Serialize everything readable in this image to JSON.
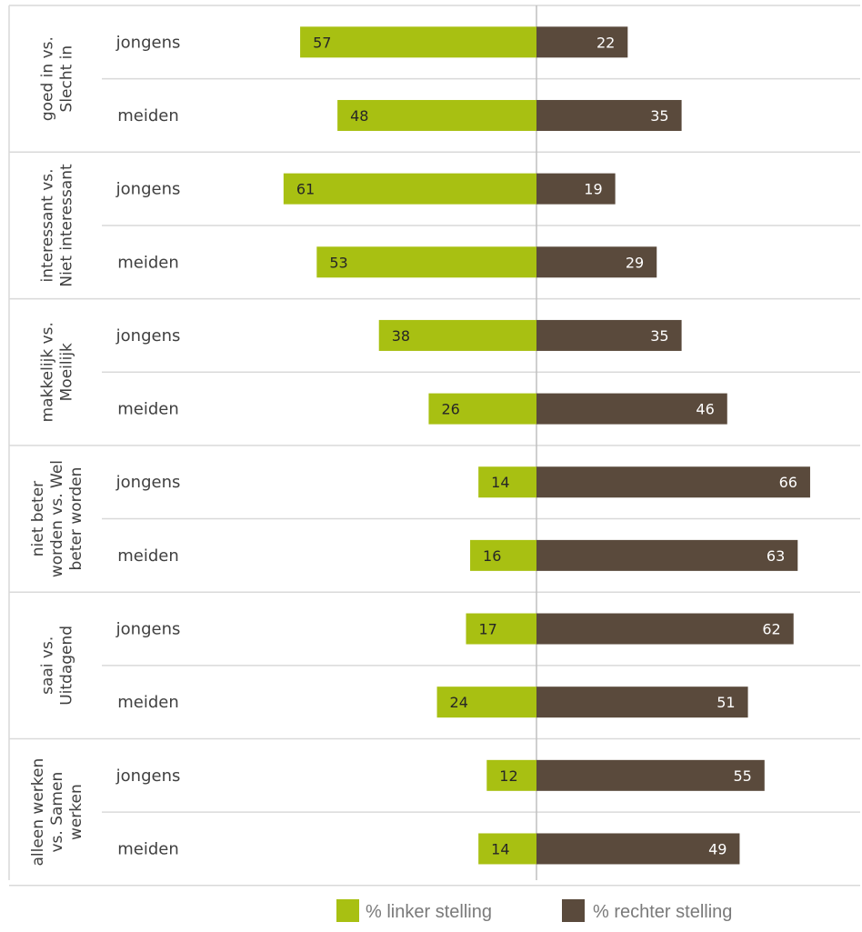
{
  "chart_data": {
    "type": "bar",
    "orientation": "horizontal-diverging",
    "xlim": [
      -65,
      70
    ],
    "grid": "horizontal separators between rows",
    "legend_position": "bottom",
    "colors": {
      "left": "#a8c012",
      "right": "#5a4a3c",
      "grid": "#d9d9d9",
      "axis": "#bfbfbf"
    },
    "groups": [
      {
        "label_lines": [
          "goed in vs.",
          "Slecht in"
        ],
        "rows": [
          {
            "label": "jongens",
            "left": 57,
            "right": 22
          },
          {
            "label": "meiden",
            "left": 48,
            "right": 35
          }
        ]
      },
      {
        "label_lines": [
          "interessant vs.",
          "Niet interessant"
        ],
        "rows": [
          {
            "label": "jongens",
            "left": 61,
            "right": 19
          },
          {
            "label": "meiden",
            "left": 53,
            "right": 29
          }
        ]
      },
      {
        "label_lines": [
          "makkelijk vs.",
          "Moeilijk"
        ],
        "rows": [
          {
            "label": "jongens",
            "left": 38,
            "right": 35
          },
          {
            "label": "meiden",
            "left": 26,
            "right": 46
          }
        ]
      },
      {
        "label_lines": [
          "niet beter",
          "worden vs. Wel",
          "beter worden"
        ],
        "rows": [
          {
            "label": "jongens",
            "left": 14,
            "right": 66
          },
          {
            "label": "meiden",
            "left": 16,
            "right": 63
          }
        ]
      },
      {
        "label_lines": [
          "saai vs.",
          "Uitdagend"
        ],
        "rows": [
          {
            "label": "jongens",
            "left": 17,
            "right": 62
          },
          {
            "label": "meiden",
            "left": 24,
            "right": 51
          }
        ]
      },
      {
        "label_lines": [
          "alleen werken",
          "vs. Samen",
          "werken"
        ],
        "rows": [
          {
            "label": "jongens",
            "left": 12,
            "right": 55
          },
          {
            "label": "meiden",
            "left": 14,
            "right": 49
          }
        ]
      }
    ],
    "legend": [
      {
        "key": "left",
        "label": "% linker stelling"
      },
      {
        "key": "right",
        "label": "% rechter stelling"
      }
    ]
  }
}
